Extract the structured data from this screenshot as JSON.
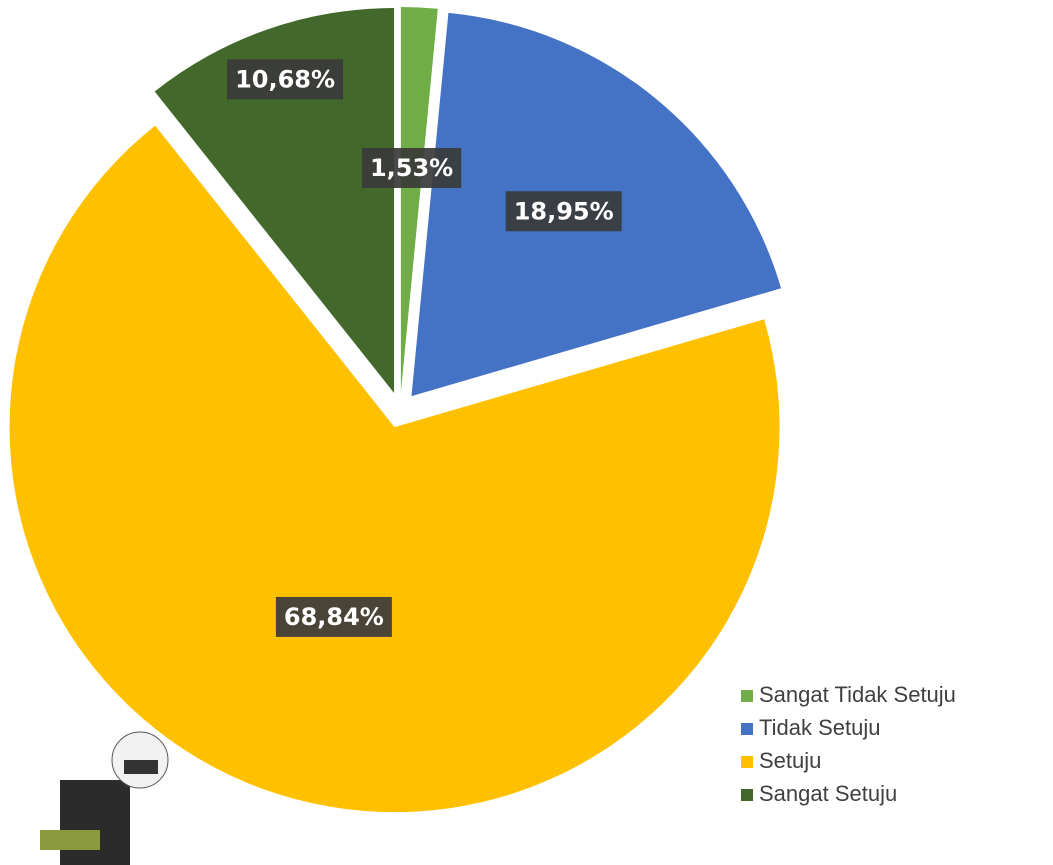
{
  "chart_data": {
    "type": "pie",
    "categories": [
      "Sangat Tidak Setuju",
      "Tidak Setuju",
      "Setuju",
      "Sangat Setuju"
    ],
    "values": [
      1.53,
      18.95,
      68.84,
      10.68
    ],
    "value_labels": [
      "1,53%",
      "18,95%",
      "68,84%",
      "10,68%"
    ],
    "colors": [
      "#70ad47",
      "#4472c4",
      "#ffc000",
      "#43682b"
    ],
    "legend": "bottom-right"
  }
}
